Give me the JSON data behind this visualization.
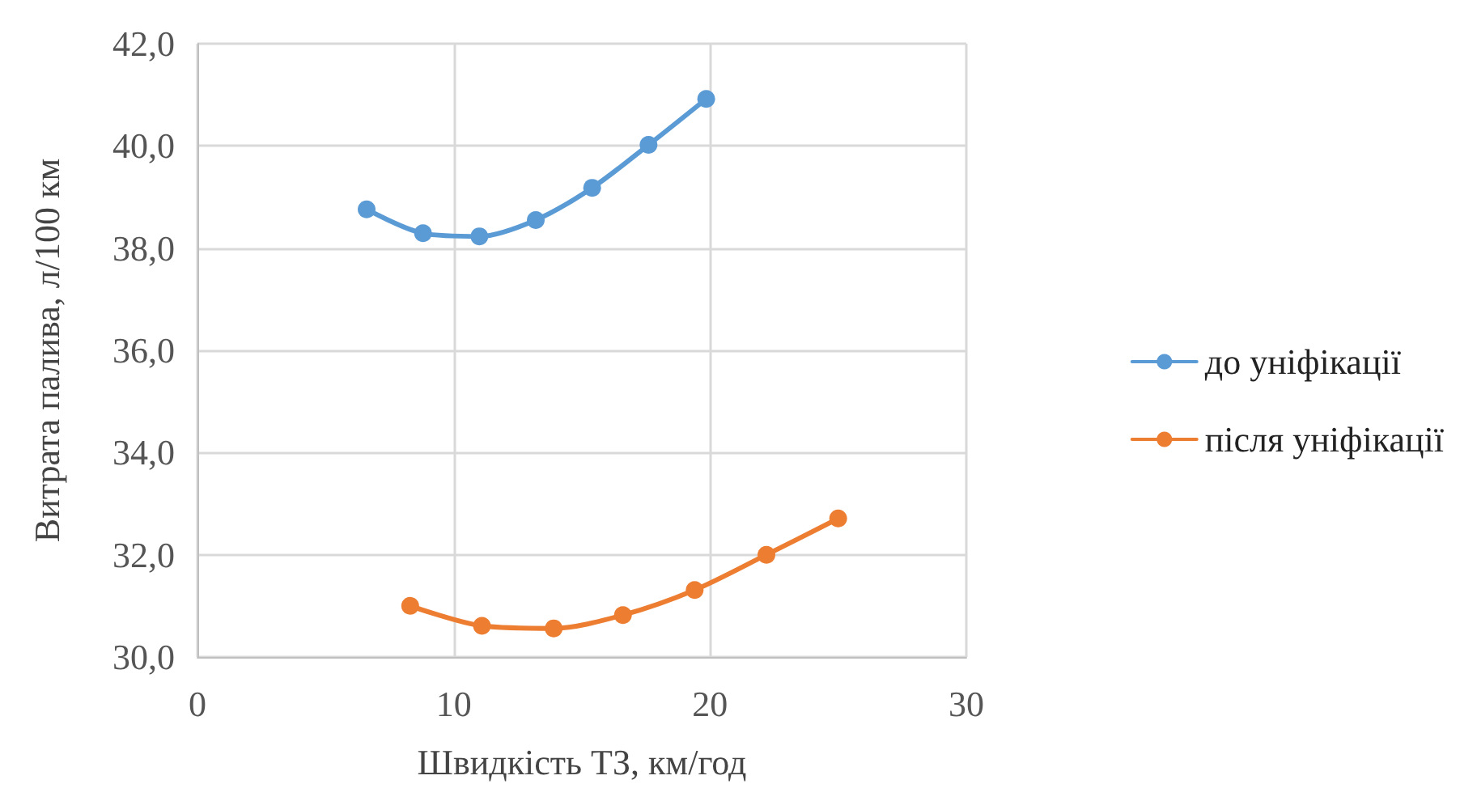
{
  "chart_data": {
    "type": "line",
    "xlabel": "Швидкість ТЗ, км/год",
    "ylabel": "Витрата палива, л/100 км",
    "xlim": [
      0,
      30
    ],
    "xticks": [
      0,
      10,
      20,
      30
    ],
    "ylim": [
      30,
      42
    ],
    "yticks": [
      {
        "value": 30,
        "label": "30,0"
      },
      {
        "value": 32,
        "label": "32,0"
      },
      {
        "value": 34,
        "label": "34,0"
      },
      {
        "value": 36,
        "label": "36,0"
      },
      {
        "value": 38,
        "label": "38,0"
      },
      {
        "value": 40,
        "label": "40,0"
      },
      {
        "value": 42,
        "label": "42,0"
      }
    ],
    "grid": true,
    "legend": "right",
    "marker": "circle",
    "line_style": "solid",
    "series": [
      {
        "name": "до уніфікації",
        "color": "#5b9bd5",
        "x": [
          6.6,
          8.8,
          11.0,
          13.2,
          15.4,
          17.6,
          19.85
        ],
        "values": [
          38.76,
          38.29,
          38.23,
          38.55,
          39.18,
          40.02,
          40.92
        ]
      },
      {
        "name": "після уніфікації",
        "color": "#ed7d31",
        "x": [
          8.3,
          11.1,
          13.9,
          16.6,
          19.4,
          22.2,
          25.0
        ],
        "values": [
          31.0,
          30.61,
          30.56,
          30.82,
          31.31,
          32.0,
          32.71
        ]
      }
    ]
  }
}
